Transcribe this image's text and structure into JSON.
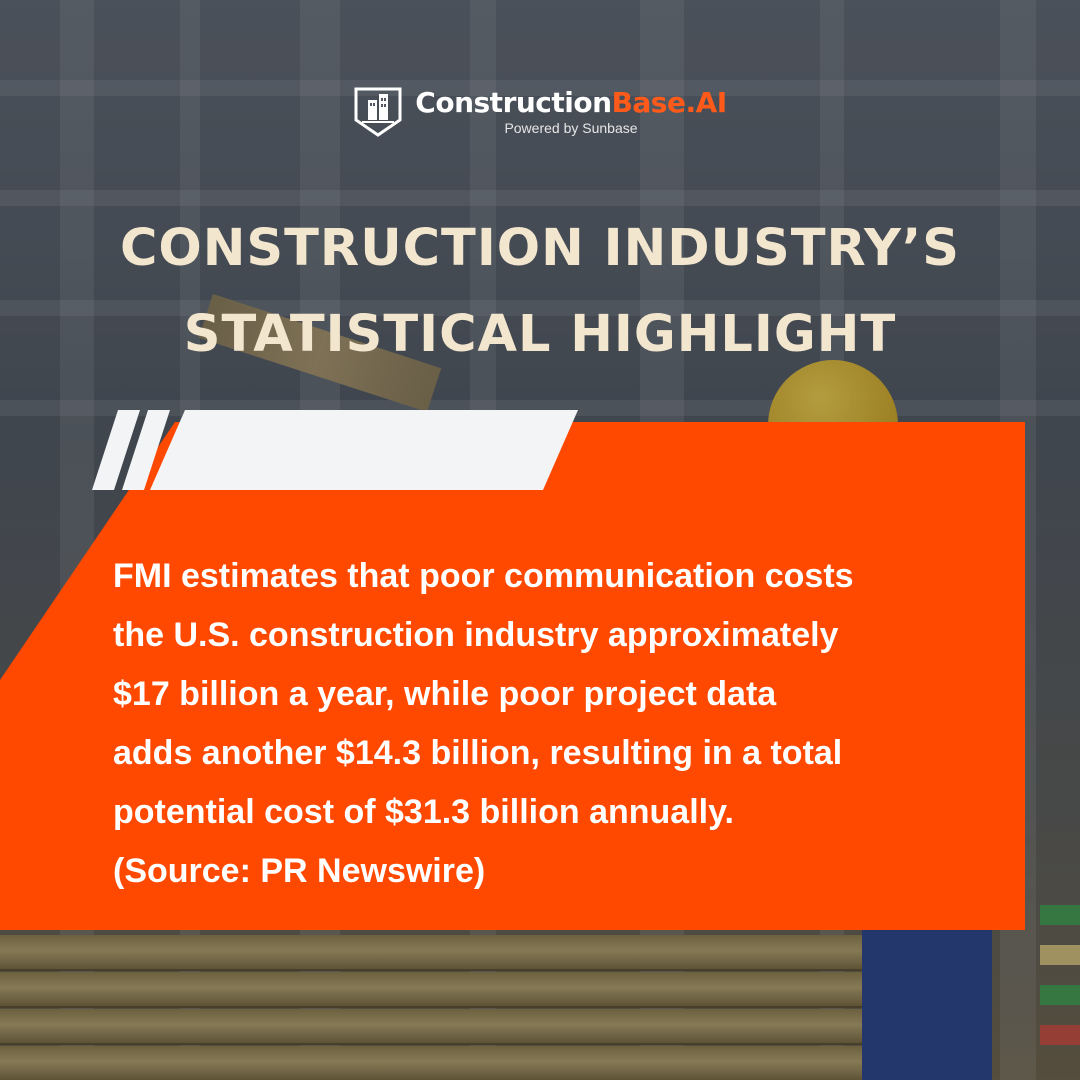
{
  "logo": {
    "brand_main": "Construction",
    "brand_accent": "Base.AI",
    "tagline": "Powered by Sunbase",
    "icon": "building-shield-icon"
  },
  "heading": {
    "line1": "CONSTRUCTION INDUSTRY’S",
    "line2": "STATISTICAL HIGHLIGHT"
  },
  "card": {
    "lines": [
      "FMI estimates that poor communication costs",
      "the U.S. construction industry approximately",
      "$17 billion a year, while poor project data",
      "adds another $14.3 billion, resulting in a total",
      "potential cost of $31.3 billion annually.",
      "(Source: PR Newswire)"
    ]
  },
  "colors": {
    "accent": "#ff4800",
    "heading": "#f3e6cf",
    "brand_accent": "#ff5a1a",
    "stripe": "#f2f4f6"
  }
}
